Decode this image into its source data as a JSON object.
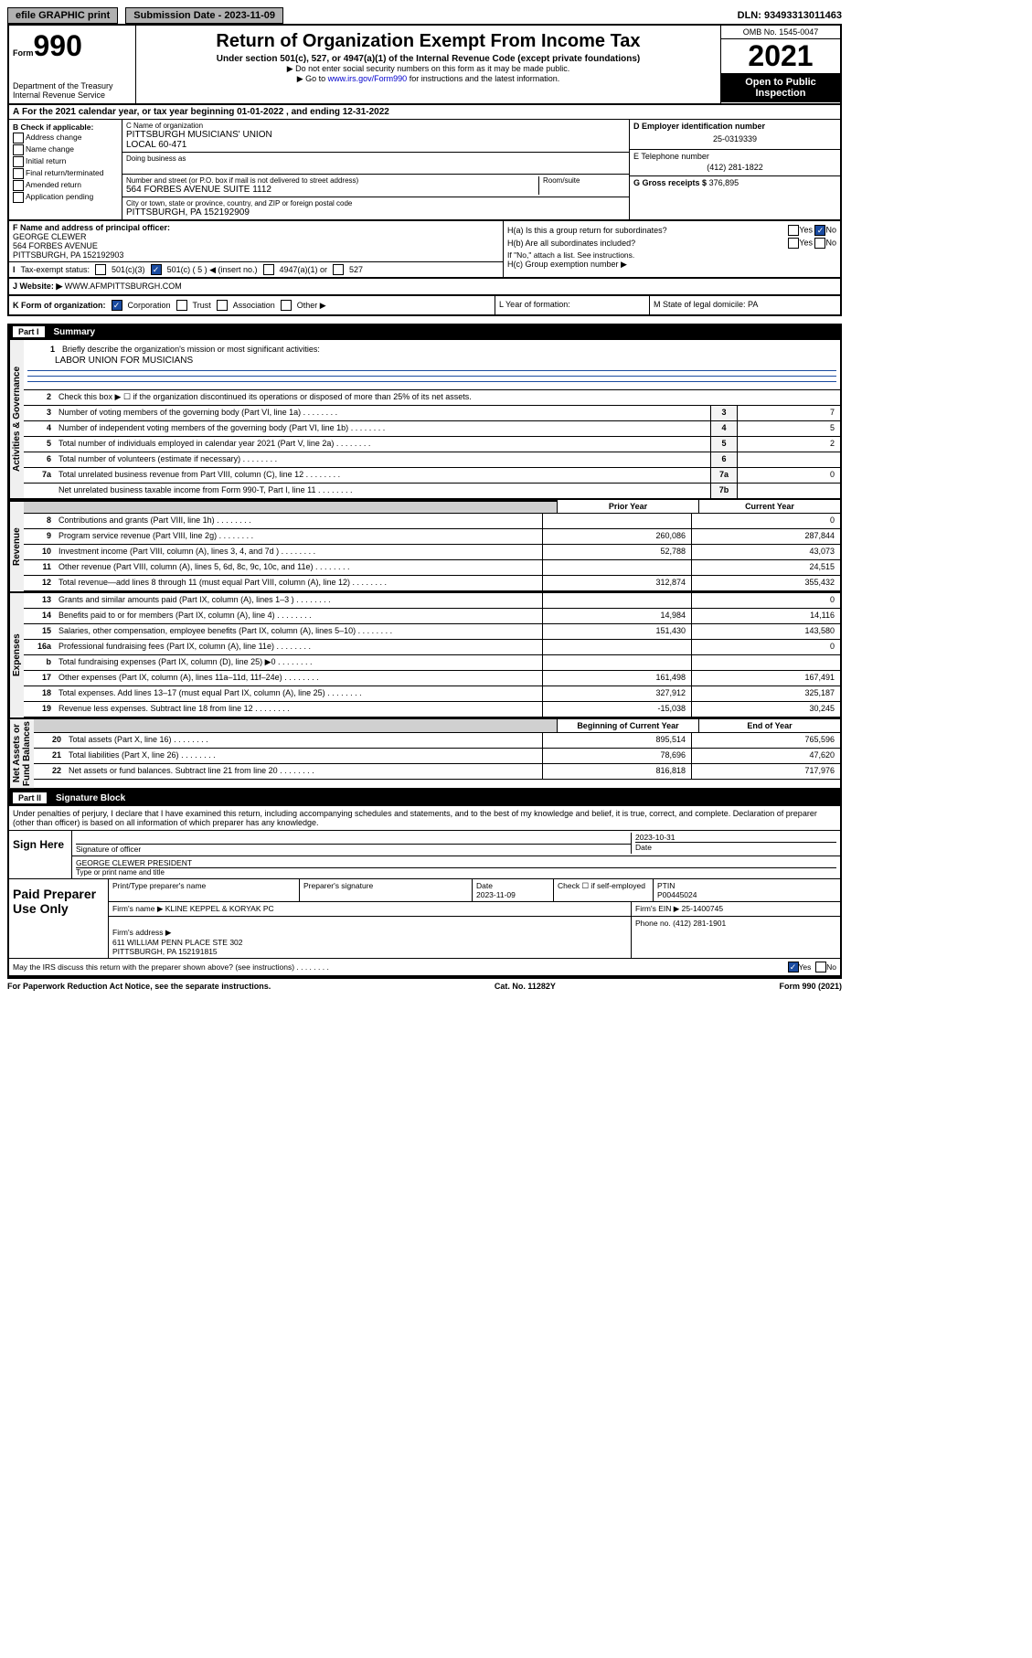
{
  "top": {
    "efile": "efile GRAPHIC print",
    "submission_label": "Submission Date - 2023-11-09",
    "dln": "DLN: 93493313011463"
  },
  "header": {
    "form_small": "Form",
    "form_big": "990",
    "dept": "Department of the Treasury Internal Revenue Service",
    "title": "Return of Organization Exempt From Income Tax",
    "sub": "Under section 501(c), 527, or 4947(a)(1) of the Internal Revenue Code (except private foundations)",
    "note1": "▶ Do not enter social security numbers on this form as it may be made public.",
    "note2_a": "▶ Go to ",
    "note2_link": "www.irs.gov/Form990",
    "note2_b": " for instructions and the latest information.",
    "omb": "OMB No. 1545-0047",
    "year": "2021",
    "open": "Open to Public Inspection"
  },
  "period": "For the 2021 calendar year, or tax year beginning 01-01-2022   , and ending 12-31-2022",
  "B": {
    "head": "B Check if applicable:",
    "opts": [
      "Address change",
      "Name change",
      "Initial return",
      "Final return/terminated",
      "Amended return",
      "Application pending"
    ]
  },
  "C": {
    "name_label": "C Name of organization",
    "name": "PITTSBURGH MUSICIANS' UNION\nLOCAL 60-471",
    "dba_label": "Doing business as",
    "addr_label": "Number and street (or P.O. box if mail is not delivered to street address)",
    "room_label": "Room/suite",
    "addr": "564 FORBES AVENUE SUITE 1112",
    "city_label": "City or town, state or province, country, and ZIP or foreign postal code",
    "city": "PITTSBURGH, PA  152192909"
  },
  "D": {
    "label": "D Employer identification number",
    "value": "25-0319339"
  },
  "E": {
    "label": "E Telephone number",
    "value": "(412) 281-1822"
  },
  "G": {
    "label": "G Gross receipts $",
    "value": "376,895"
  },
  "F": {
    "label": "F  Name and address of principal officer:",
    "name": "GEORGE CLEWER",
    "addr1": "564 FORBES AVENUE",
    "addr2": "PITTSBURGH, PA  152192903"
  },
  "I": {
    "label": "Tax-exempt status:",
    "opts": [
      "501(c)(3)",
      "501(c) ( 5 ) ◀ (insert no.)",
      "4947(a)(1) or",
      "527"
    ]
  },
  "H": {
    "a": "H(a)  Is this a group return for subordinates?",
    "b": "H(b)  Are all subordinates included?",
    "b_note": "If \"No,\" attach a list. See instructions.",
    "c": "H(c)  Group exemption number ▶",
    "yes": "Yes",
    "no": "No"
  },
  "J": {
    "label": "J   Website: ▶",
    "value": "WWW.AFMPITTSBURGH.COM"
  },
  "K": {
    "label": "K Form of organization:",
    "opts": [
      "Corporation",
      "Trust",
      "Association",
      "Other ▶"
    ]
  },
  "L": {
    "label": "L Year of formation:"
  },
  "M": {
    "label": "M State of legal domicile: PA"
  },
  "partI": {
    "title": "Part I",
    "name": "Summary",
    "line1_label": "Briefly describe the organization's mission or most significant activities:",
    "line1": "LABOR UNION FOR MUSICIANS",
    "line2": "Check this box ▶ ☐  if the organization discontinued its operations or disposed of more than 25% of its net assets.",
    "gov": [
      {
        "n": "3",
        "t": "Number of voting members of the governing body (Part VI, line 1a)",
        "b": "3",
        "v": "7"
      },
      {
        "n": "4",
        "t": "Number of independent voting members of the governing body (Part VI, line 1b)",
        "b": "4",
        "v": "5"
      },
      {
        "n": "5",
        "t": "Total number of individuals employed in calendar year 2021 (Part V, line 2a)",
        "b": "5",
        "v": "2"
      },
      {
        "n": "6",
        "t": "Total number of volunteers (estimate if necessary)",
        "b": "6",
        "v": ""
      },
      {
        "n": "7a",
        "t": "Total unrelated business revenue from Part VIII, column (C), line 12",
        "b": "7a",
        "v": "0"
      },
      {
        "n": "",
        "t": "Net unrelated business taxable income from Form 990-T, Part I, line 11",
        "b": "7b",
        "v": ""
      }
    ],
    "col1": "Prior Year",
    "col2": "Current Year",
    "rev": [
      {
        "n": "8",
        "t": "Contributions and grants (Part VIII, line 1h)",
        "p": "",
        "c": "0"
      },
      {
        "n": "9",
        "t": "Program service revenue (Part VIII, line 2g)",
        "p": "260,086",
        "c": "287,844"
      },
      {
        "n": "10",
        "t": "Investment income (Part VIII, column (A), lines 3, 4, and 7d )",
        "p": "52,788",
        "c": "43,073"
      },
      {
        "n": "11",
        "t": "Other revenue (Part VIII, column (A), lines 5, 6d, 8c, 9c, 10c, and 11e)",
        "p": "",
        "c": "24,515"
      },
      {
        "n": "12",
        "t": "Total revenue—add lines 8 through 11 (must equal Part VIII, column (A), line 12)",
        "p": "312,874",
        "c": "355,432"
      }
    ],
    "exp": [
      {
        "n": "13",
        "t": "Grants and similar amounts paid (Part IX, column (A), lines 1–3 )",
        "p": "",
        "c": "0"
      },
      {
        "n": "14",
        "t": "Benefits paid to or for members (Part IX, column (A), line 4)",
        "p": "14,984",
        "c": "14,116"
      },
      {
        "n": "15",
        "t": "Salaries, other compensation, employee benefits (Part IX, column (A), lines 5–10)",
        "p": "151,430",
        "c": "143,580"
      },
      {
        "n": "16a",
        "t": "Professional fundraising fees (Part IX, column (A), line 11e)",
        "p": "",
        "c": "0"
      },
      {
        "n": "b",
        "t": "Total fundraising expenses (Part IX, column (D), line 25) ▶0",
        "p": "shade",
        "c": "shade"
      },
      {
        "n": "17",
        "t": "Other expenses (Part IX, column (A), lines 11a–11d, 11f–24e)",
        "p": "161,498",
        "c": "167,491"
      },
      {
        "n": "18",
        "t": "Total expenses. Add lines 13–17 (must equal Part IX, column (A), line 25)",
        "p": "327,912",
        "c": "325,187"
      },
      {
        "n": "19",
        "t": "Revenue less expenses. Subtract line 18 from line 12",
        "p": "-15,038",
        "c": "30,245"
      }
    ],
    "bcol1": "Beginning of Current Year",
    "bcol2": "End of Year",
    "bal": [
      {
        "n": "20",
        "t": "Total assets (Part X, line 16)",
        "p": "895,514",
        "c": "765,596"
      },
      {
        "n": "21",
        "t": "Total liabilities (Part X, line 26)",
        "p": "78,696",
        "c": "47,620"
      },
      {
        "n": "22",
        "t": "Net assets or fund balances. Subtract line 21 from line 20",
        "p": "816,818",
        "c": "717,976"
      }
    ]
  },
  "partII": {
    "title": "Part II",
    "name": "Signature Block",
    "penalty": "Under penalties of perjury, I declare that I have examined this return, including accompanying schedules and statements, and to the best of my knowledge and belief, it is true, correct, and complete. Declaration of preparer (other than officer) is based on all information of which preparer has any knowledge.",
    "sign_here": "Sign Here",
    "sig_officer": "Signature of officer",
    "sig_date": "2023-10-31",
    "sig_date_label": "Date",
    "officer_name": "GEORGE CLEWER  PRESIDENT",
    "officer_name_label": "Type or print name and title",
    "paid_prep": "Paid Preparer Use Only",
    "prep_name_label": "Print/Type preparer's name",
    "prep_sig_label": "Preparer's signature",
    "prep_date_label": "Date",
    "prep_date": "2023-11-09",
    "prep_check_label": "Check ☐ if self-employed",
    "ptin_label": "PTIN",
    "ptin": "P00445024",
    "firm_name_label": "Firm's name    ▶",
    "firm_name": "KLINE KEPPEL & KORYAK PC",
    "firm_ein_label": "Firm's EIN ▶",
    "firm_ein": "25-1400745",
    "firm_addr_label": "Firm's address ▶",
    "firm_addr": "611 WILLIAM PENN PLACE STE 302\nPITTSBURGH, PA  152191815",
    "firm_phone_label": "Phone no.",
    "firm_phone": "(412) 281-1901",
    "discuss": "May the IRS discuss this return with the preparer shown above? (see instructions)"
  },
  "footer": {
    "pra": "For Paperwork Reduction Act Notice, see the separate instructions.",
    "cat": "Cat. No. 11282Y",
    "form": "Form 990 (2021)"
  }
}
